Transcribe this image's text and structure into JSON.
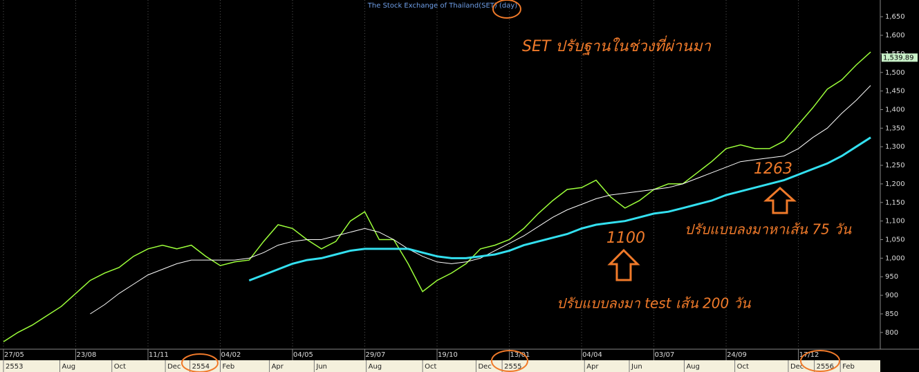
{
  "chart_data": {
    "type": "line",
    "title": "The Stock Exchange of Thailand(SET) (day)",
    "annotations": [
      "SET ปรับฐานในช่วงที่ผ่านมา",
      "1263",
      "ปรับแบบลงมาหาเส้น 75 วัน",
      "1100",
      "ปรับแบบลงมา test เส้น 200 วัน"
    ],
    "last_label": {
      "value": 1539.89,
      "label": "1,539.89"
    },
    "xlim": [
      0,
      61
    ],
    "xticks": [
      {
        "value": 0,
        "label": "27/05"
      },
      {
        "value": 5,
        "label": "23/08"
      },
      {
        "value": 10,
        "label": "11/11"
      },
      {
        "value": 15,
        "label": "04/02"
      },
      {
        "value": 20,
        "label": "04/05"
      },
      {
        "value": 25,
        "label": "29/07"
      },
      {
        "value": 30,
        "label": "19/10"
      },
      {
        "value": 35,
        "label": "13/01"
      },
      {
        "value": 40,
        "label": "04/04"
      },
      {
        "value": 45,
        "label": "03/07"
      },
      {
        "value": 50,
        "label": "24/09"
      },
      {
        "value": 55,
        "label": "17/12"
      }
    ],
    "xticks_months": [
      {
        "value": 0,
        "label": "2553"
      },
      {
        "value": 3.9,
        "label": "Aug"
      },
      {
        "value": 7.5,
        "label": "Oct"
      },
      {
        "value": 11.2,
        "label": "Dec"
      },
      {
        "value": 12.9,
        "label": "2554"
      },
      {
        "value": 15,
        "label": "Feb"
      },
      {
        "value": 18.4,
        "label": "Apr"
      },
      {
        "value": 21.5,
        "label": "Jun"
      },
      {
        "value": 25.1,
        "label": "Aug"
      },
      {
        "value": 29,
        "label": "Oct"
      },
      {
        "value": 32.7,
        "label": "Dec"
      },
      {
        "value": 34.5,
        "label": "2555"
      },
      {
        "value": 40.2,
        "label": "Apr"
      },
      {
        "value": 43.3,
        "label": "Jun"
      },
      {
        "value": 47.1,
        "label": "Aug"
      },
      {
        "value": 50.6,
        "label": "Oct"
      },
      {
        "value": 54.3,
        "label": "Dec"
      },
      {
        "value": 56.1,
        "label": "2556"
      },
      {
        "value": 57.9,
        "label": "Feb"
      }
    ],
    "ylim": [
      755,
      1695
    ],
    "yticks": [
      800,
      850,
      900,
      950,
      {
        "value": 1000,
        "label": "1,000"
      },
      {
        "value": 1050,
        "label": "1,050"
      },
      {
        "value": 1100,
        "label": "1,100"
      },
      {
        "value": 1150,
        "label": "1,150"
      },
      {
        "value": 1200,
        "label": "1,200"
      },
      {
        "value": 1250,
        "label": "1,250"
      },
      {
        "value": 1300,
        "label": "1,300"
      },
      {
        "value": 1350,
        "label": "1,350"
      },
      {
        "value": 1400,
        "label": "1,400"
      },
      {
        "value": 1450,
        "label": "1,450"
      },
      {
        "value": 1500,
        "label": "1,500"
      },
      {
        "value": 1550,
        "label": "1,550"
      },
      {
        "value": 1600,
        "label": "1,600"
      },
      {
        "value": 1650,
        "label": "1,650"
      }
    ],
    "grid": true,
    "series": [
      {
        "color": "#9cff3a",
        "values": [
          775,
          800,
          820,
          845,
          870,
          905,
          940,
          960,
          975,
          1005,
          1025,
          1035,
          1025,
          1035,
          1005,
          980,
          990,
          995,
          1045,
          1090,
          1080,
          1050,
          1025,
          1045,
          1100,
          1125,
          1050,
          1050,
          985,
          910,
          940,
          960,
          985,
          1025,
          1035,
          1050,
          1080,
          1120,
          1155,
          1185,
          1190,
          1210,
          1165,
          1135,
          1155,
          1185,
          1200,
          1200,
          1230,
          1260,
          1295,
          1305,
          1295,
          1295,
          1315,
          1360,
          1405,
          1455,
          1480,
          1520,
          1555
        ]
      },
      {
        "color": "#ffffff",
        "values": [
          null,
          null,
          null,
          null,
          null,
          null,
          850,
          875,
          905,
          930,
          955,
          970,
          985,
          995,
          995,
          995,
          995,
          1000,
          1015,
          1035,
          1045,
          1050,
          1050,
          1060,
          1070,
          1080,
          1070,
          1050,
          1025,
          1005,
          990,
          985,
          990,
          1000,
          1020,
          1040,
          1060,
          1085,
          1110,
          1130,
          1145,
          1160,
          1170,
          1175,
          1180,
          1185,
          1190,
          1200,
          1215,
          1230,
          1245,
          1260,
          1265,
          1270,
          1275,
          1295,
          1325,
          1350,
          1390,
          1425,
          1465
        ]
      },
      {
        "color": "#33e0f0",
        "values": [
          null,
          null,
          null,
          null,
          null,
          null,
          null,
          null,
          null,
          null,
          null,
          null,
          null,
          null,
          null,
          null,
          null,
          940,
          955,
          970,
          985,
          995,
          1000,
          1010,
          1020,
          1025,
          1025,
          1025,
          1025,
          1015,
          1005,
          1000,
          1000,
          1005,
          1010,
          1020,
          1035,
          1045,
          1055,
          1065,
          1080,
          1090,
          1095,
          1100,
          1110,
          1120,
          1125,
          1135,
          1145,
          1155,
          1170,
          1180,
          1190,
          1200,
          1210,
          1225,
          1240,
          1255,
          1275,
          1300,
          1325
        ]
      }
    ]
  }
}
